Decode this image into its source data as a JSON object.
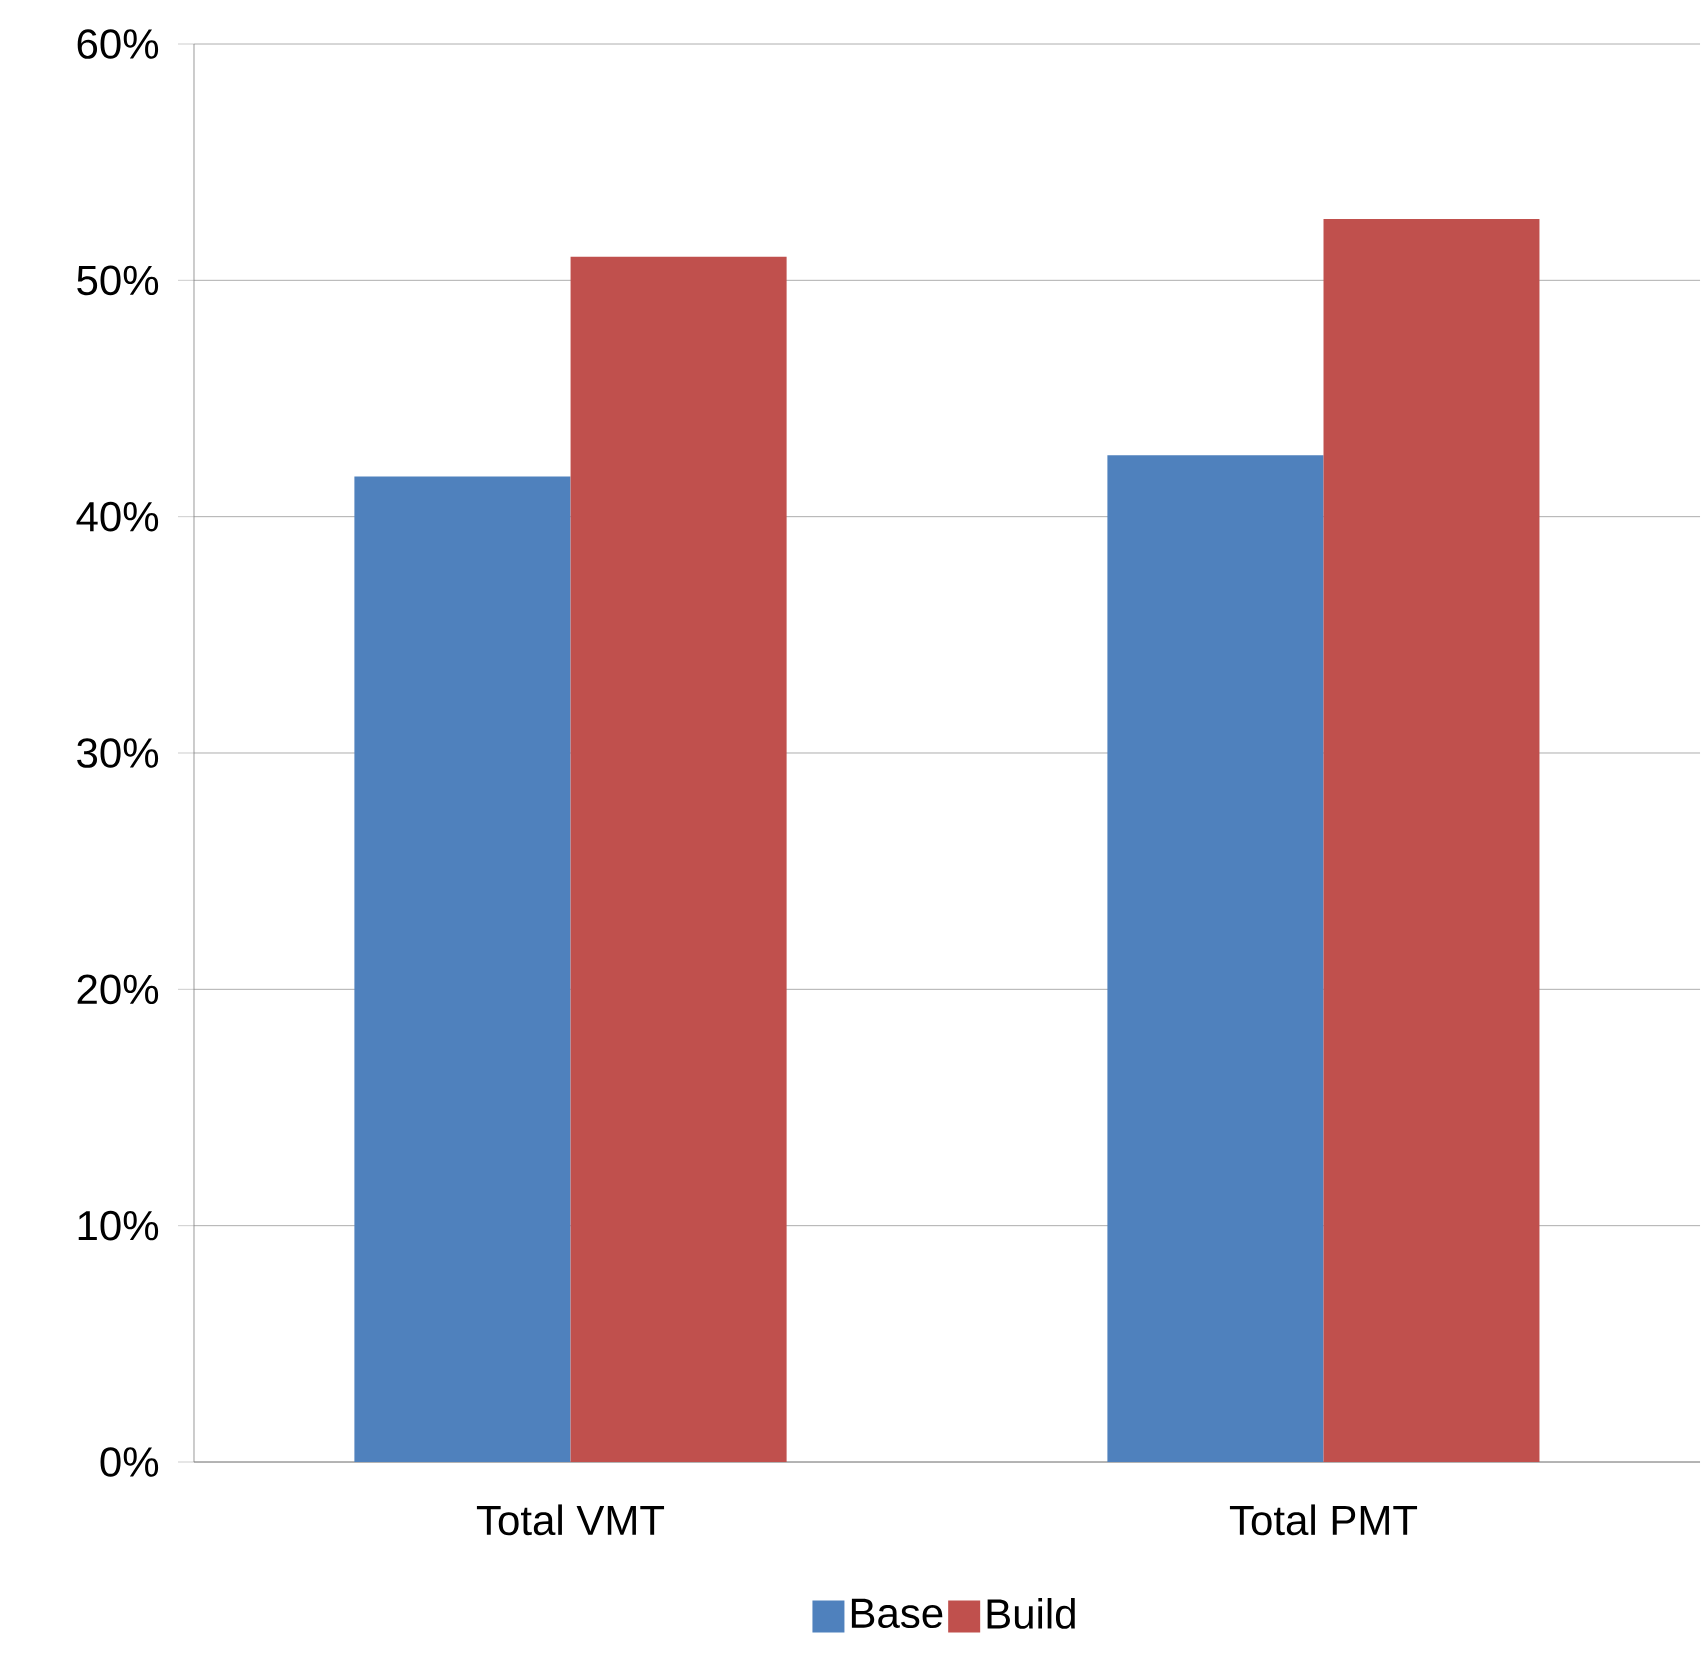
{
  "chart_data": {
    "type": "bar",
    "categories": [
      "Total VMT",
      "Total PMT"
    ],
    "series": [
      {
        "name": "Base",
        "color": "#4f81bd",
        "values": [
          41.7,
          42.6
        ]
      },
      {
        "name": "Build",
        "color": "#c0504d",
        "values": [
          51.0,
          52.6
        ]
      }
    ],
    "ylim": [
      0,
      60
    ],
    "yticks": [
      {
        "value": 0,
        "label": "0%"
      },
      {
        "value": 10,
        "label": "10%"
      },
      {
        "value": 20,
        "label": "20%"
      },
      {
        "value": 30,
        "label": "30%"
      },
      {
        "value": 40,
        "label": "40%"
      },
      {
        "value": 50,
        "label": "50%"
      },
      {
        "value": 60,
        "label": "60%"
      }
    ],
    "grid": "y",
    "legend": "bottom"
  }
}
